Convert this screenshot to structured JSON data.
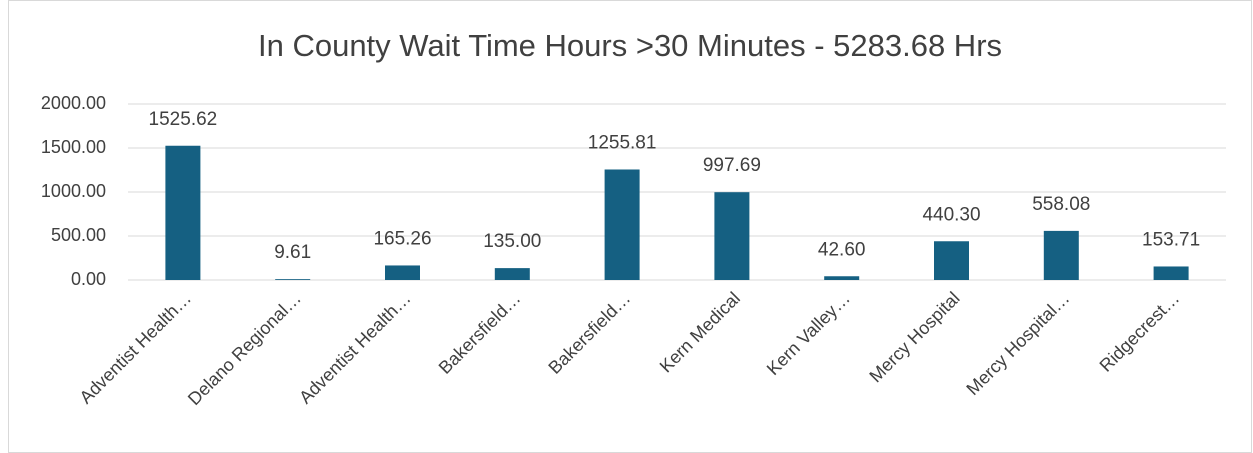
{
  "chart_data": {
    "type": "bar",
    "title": "In County Wait Time Hours >30 Minutes - 5283.68 Hrs",
    "categories": [
      "Adventist Health…",
      "Delano Regional…",
      "Adventist Health…",
      "Bakersfield…",
      "Bakersfield…",
      "Kern Medical",
      "Kern Valley…",
      "Mercy Hospital",
      "Mercy Hospital…",
      "Ridgecrest…"
    ],
    "values": [
      1525.62,
      9.61,
      165.26,
      135,
      1255.81,
      997.69,
      42.6,
      440.3,
      558.08,
      153.71
    ],
    "value_labels": [
      "1525.62",
      "9.61",
      "165.26",
      "135.00",
      "1255.81",
      "997.69",
      "42.60",
      "440.30",
      "558.08",
      "153.71"
    ],
    "color": "#156082",
    "ylim": [
      0,
      2000
    ],
    "yticks": [
      {
        "value": 0,
        "label": "0.00"
      },
      {
        "value": 500,
        "label": "500.00"
      },
      {
        "value": 1000,
        "label": "1000.00"
      },
      {
        "value": 1500,
        "label": "1500.00"
      },
      {
        "value": 2000,
        "label": "2000.00"
      }
    ],
    "grid": true
  }
}
